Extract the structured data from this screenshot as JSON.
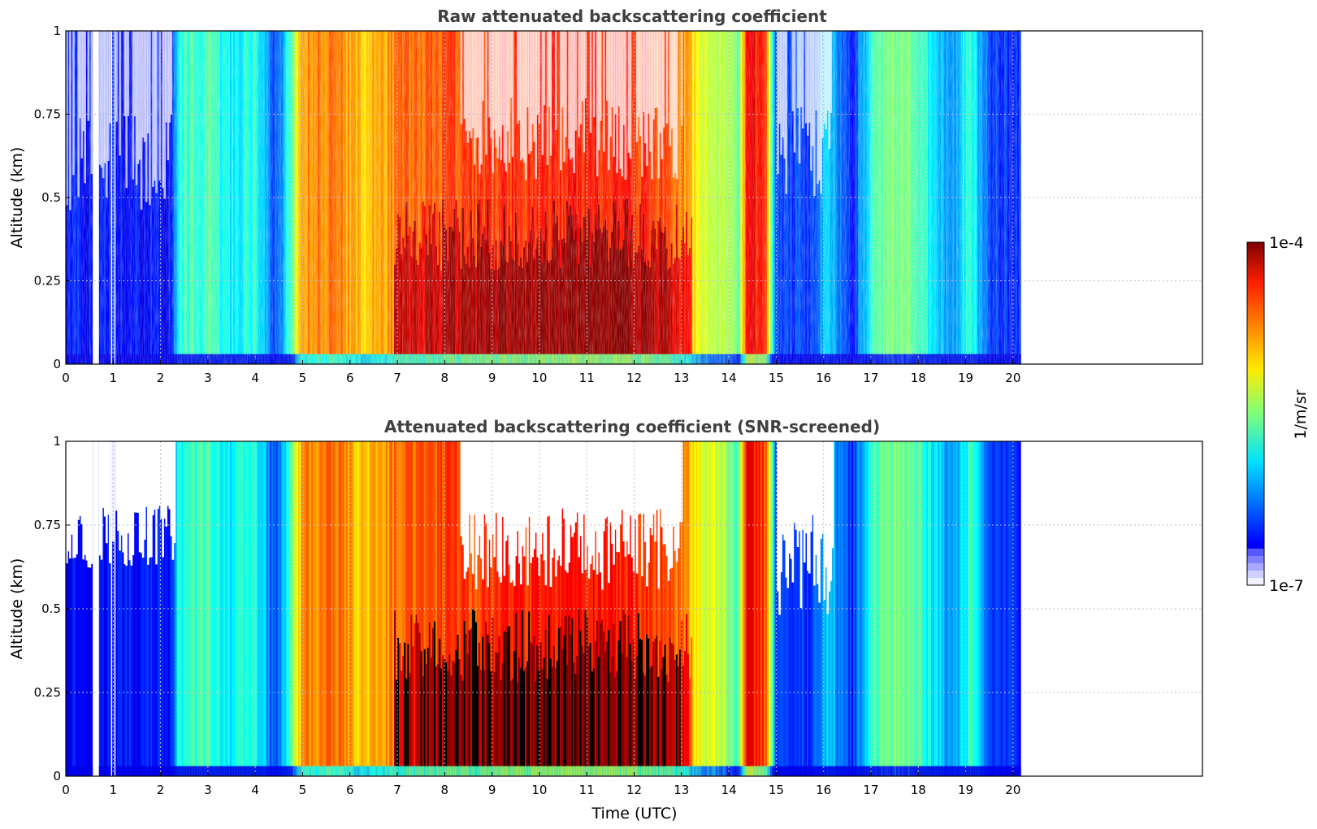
{
  "chart_data": [
    {
      "type": "heatmap",
      "title": "Raw attenuated backscattering coefficient",
      "xlabel": "",
      "ylabel": "Altitude (km)",
      "xlim": [
        0,
        24
      ],
      "ylim": [
        0,
        1
      ],
      "xticks": [
        0,
        1,
        2,
        3,
        4,
        5,
        6,
        7,
        8,
        9,
        10,
        11,
        12,
        13,
        14,
        15,
        16,
        17,
        18,
        19,
        20
      ],
      "yticks": [
        0,
        0.25,
        0.5,
        0.75,
        1
      ],
      "ytick_labels": [
        "0",
        "0.25",
        "0.5",
        "0.75",
        "1"
      ],
      "data_extent_hours": [
        0,
        20.15
      ],
      "grid": true,
      "screened": false
    },
    {
      "type": "heatmap",
      "title": "Attenuated backscattering coefficient (SNR-screened)",
      "xlabel": "Time (UTC)",
      "ylabel": "Altitude (km)",
      "xlim": [
        0,
        24
      ],
      "ylim": [
        0,
        1
      ],
      "xticks": [
        0,
        1,
        2,
        3,
        4,
        5,
        6,
        7,
        8,
        9,
        10,
        11,
        12,
        13,
        14,
        15,
        16,
        17,
        18,
        19,
        20
      ],
      "yticks": [
        0,
        0.25,
        0.5,
        0.75,
        1
      ],
      "ytick_labels": [
        "0",
        "0.25",
        "0.5",
        "0.75",
        "1"
      ],
      "data_extent_hours": [
        0,
        20.15
      ],
      "grid": true,
      "screened": true
    }
  ],
  "colorbar": {
    "label": "1/m/sr",
    "max_label": "1e-4",
    "min_label": "1e-7",
    "scale": "log",
    "colormap": "jet",
    "low_end_colors": [
      "#f0f0ff",
      "#d0d0ff",
      "#a8a8ff",
      "#8080ff",
      "#5858ff"
    ]
  }
}
